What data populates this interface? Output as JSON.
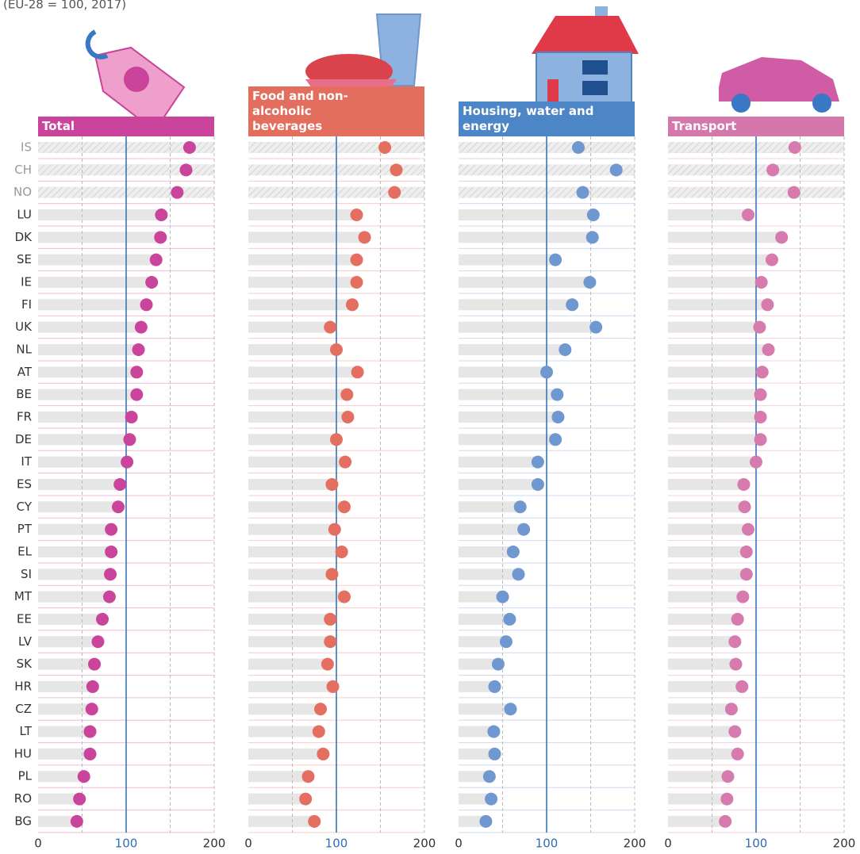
{
  "chart_data": {
    "type": "dot",
    "subtitle": "(EU-28 = 100, 2017)",
    "categories": [
      "IS",
      "CH",
      "NO",
      "LU",
      "DK",
      "SE",
      "IE",
      "FI",
      "UK",
      "NL",
      "AT",
      "BE",
      "FR",
      "DE",
      "IT",
      "ES",
      "CY",
      "PT",
      "EL",
      "SI",
      "MT",
      "EE",
      "LV",
      "SK",
      "HR",
      "CZ",
      "LT",
      "HU",
      "PL",
      "RO",
      "BG"
    ],
    "hatched_categories": [
      "IS",
      "CH",
      "NO"
    ],
    "series": [
      {
        "name": "Total",
        "color": "#c9449a",
        "header_color": "#c9449a",
        "values": [
          172,
          168,
          158,
          140,
          139,
          134,
          129,
          123,
          117,
          114,
          112,
          112,
          106,
          104,
          101,
          93,
          91,
          83,
          83,
          82,
          81,
          73,
          68,
          64,
          62,
          61,
          59,
          59,
          52,
          47,
          44
        ]
      },
      {
        "name": "Food and non-alcoholic beverages",
        "color": "#e46f61",
        "header_color": "#e36e5e",
        "values": [
          155,
          168,
          166,
          123,
          132,
          123,
          123,
          118,
          93,
          100,
          124,
          112,
          113,
          100,
          110,
          95,
          109,
          98,
          106,
          95,
          109,
          93,
          93,
          90,
          96,
          82,
          80,
          85,
          68,
          65,
          75
        ]
      },
      {
        "name": "Housing, water and energy",
        "color": "#6f97d0",
        "header_color": "#4d86c6",
        "values": [
          136,
          179,
          141,
          153,
          152,
          110,
          149,
          129,
          156,
          121,
          100,
          112,
          113,
          110,
          90,
          90,
          70,
          74,
          62,
          68,
          50,
          58,
          54,
          45,
          41,
          59,
          40,
          41,
          35,
          37,
          31
        ]
      },
      {
        "name": "Transport",
        "color": "#d77aae",
        "header_color": "#d478ac",
        "values": [
          144,
          119,
          143,
          91,
          129,
          118,
          106,
          113,
          104,
          114,
          107,
          105,
          105,
          105,
          100,
          86,
          87,
          91,
          89,
          89,
          85,
          79,
          76,
          77,
          84,
          72,
          76,
          79,
          68,
          67,
          65
        ]
      }
    ],
    "xlim": [
      0,
      200
    ],
    "xticks": [
      0,
      100,
      200
    ],
    "minor_xticks": [
      50,
      150
    ],
    "reference_line": 100
  }
}
